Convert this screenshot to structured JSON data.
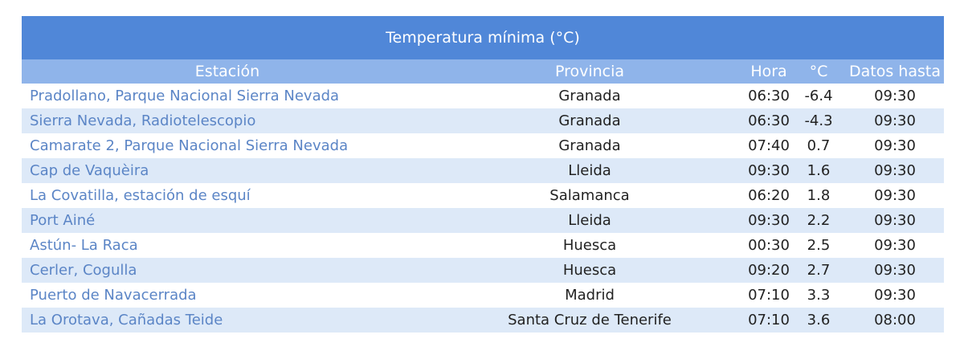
{
  "title": "Temperatura mínima (°C)",
  "headers": [
    "Estación",
    "Provincia",
    "Hora",
    "°C",
    "Datos hasta"
  ],
  "rows": [
    {
      "estacion": "Pradollano, Parque Nacional Sierra Nevada",
      "provincia": "Granada",
      "hora": "06:30",
      "temp": "-6.4",
      "datos": "09:30"
    },
    {
      "estacion": "Sierra Nevada, Radiotelescopio",
      "provincia": "Granada",
      "hora": "06:30",
      "temp": "-4.3",
      "datos": "09:30"
    },
    {
      "estacion": "Camarate 2, Parque Nacional Sierra Nevada",
      "provincia": "Granada",
      "hora": "07:40",
      "temp": "0.7",
      "datos": "09:30"
    },
    {
      "estacion": "Cap de Vaquèira",
      "provincia": "Lleida",
      "hora": "09:30",
      "temp": "1.6",
      "datos": "09:30"
    },
    {
      "estacion": "La Covatilla, estación de esquí",
      "provincia": "Salamanca",
      "hora": "06:20",
      "temp": "1.8",
      "datos": "09:30"
    },
    {
      "estacion": "Port Ainé",
      "provincia": "Lleida",
      "hora": "09:30",
      "temp": "2.2",
      "datos": "09:30"
    },
    {
      "estacion": "Astún- La Raca",
      "provincia": "Huesca",
      "hora": "00:30",
      "temp": "2.5",
      "datos": "09:30"
    },
    {
      "estacion": "Cerler, Cogulla",
      "provincia": "Huesca",
      "hora": "09:20",
      "temp": "2.7",
      "datos": "09:30"
    },
    {
      "estacion": "Puerto de Navacerrada",
      "provincia": "Madrid",
      "hora": "07:10",
      "temp": "3.3",
      "datos": "09:30"
    },
    {
      "estacion": "La Orotava, Cañadas Teide",
      "provincia": "Santa Cruz de Tenerife",
      "hora": "07:10",
      "temp": "3.6",
      "datos": "08:00"
    }
  ]
}
